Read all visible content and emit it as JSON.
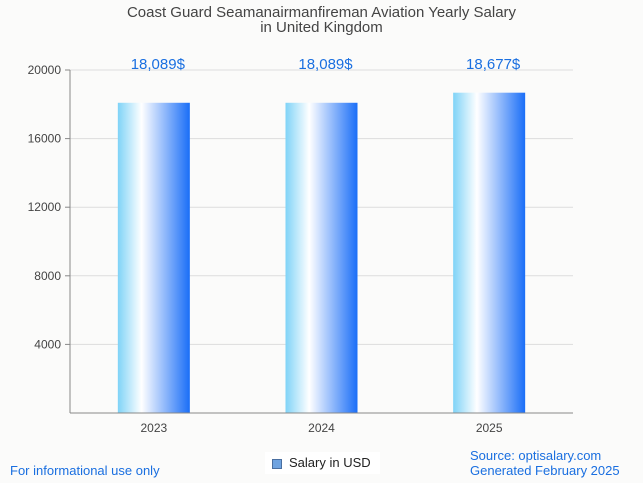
{
  "chart_data": {
    "type": "bar",
    "title": [
      "Coast Guard Seamanairmanfireman Aviation Yearly Salary",
      "in United Kingdom"
    ],
    "categories": [
      "2023",
      "2024",
      "2025"
    ],
    "series": [
      {
        "name": "Salary in USD",
        "values": [
          18089,
          18089,
          18677
        ]
      }
    ],
    "data_labels": [
      "18,089$",
      "18,089$",
      "18,677$"
    ],
    "ylim": [
      0,
      20000
    ],
    "yticks": [
      4000,
      8000,
      12000,
      16000,
      20000
    ],
    "ytick_labels": [
      "4000",
      "8000",
      "12000",
      "16000",
      "20000"
    ],
    "grid": true,
    "legend": "bottom-center",
    "colors": {
      "bar_left": "#7fd3f7",
      "bar_mid": "#ffffff",
      "bar_right": "#1a6ef7",
      "label": "#1a6fe0",
      "grid": "#dddddd",
      "axis": "#888888"
    }
  },
  "footer": {
    "disclaimer": "For informational use only",
    "source": "Source: optisalary.com",
    "generated": "Generated February 2025"
  }
}
